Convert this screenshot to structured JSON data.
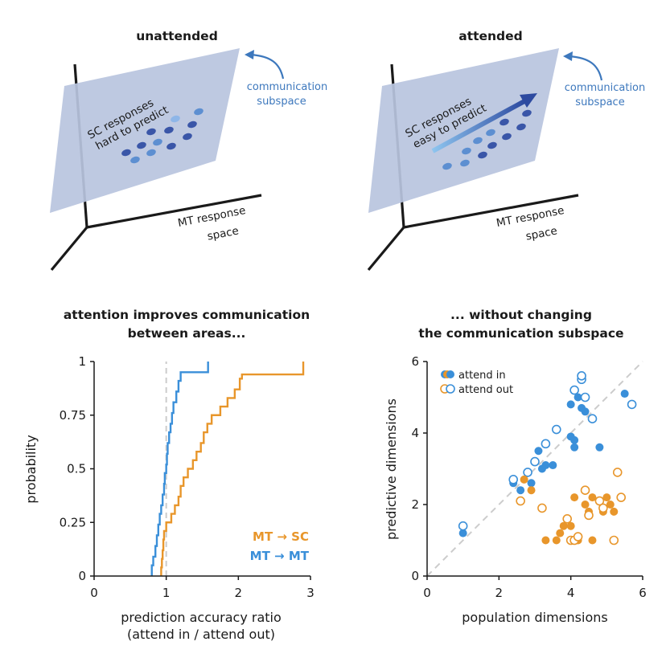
{
  "panel_a": {
    "title": "unattended",
    "plane_label": [
      "SC responses",
      "hard to predict"
    ],
    "subspace_label": [
      "communication",
      "subspace"
    ],
    "space_label": [
      "MT response",
      "space"
    ]
  },
  "panel_b": {
    "title": "attended",
    "plane_label": [
      "SC responses",
      "easy to predict"
    ],
    "subspace_label": [
      "communication",
      "subspace"
    ],
    "space_label": [
      "MT response",
      "space"
    ]
  },
  "colors": {
    "plane": "#b9c4de",
    "dot_dark": "#3a56a8",
    "dot_light": "#5d8fd1",
    "mt_sc": "#e8962b",
    "mt_mt": "#3a8fd9",
    "diag": "#cccccc"
  },
  "chart_data": [
    {
      "type": "line",
      "title": "attention improves communication between areas...",
      "title_lines": [
        "attention improves communication",
        "between areas..."
      ],
      "xlabel": "prediction accuracy ratio",
      "xlabel2": "(attend in / attend out)",
      "ylabel": "probability",
      "xlim": [
        0,
        3
      ],
      "ylim": [
        0,
        1
      ],
      "xticks": [
        "0",
        "1",
        "2",
        "3"
      ],
      "yticks": [
        "0",
        "0.25",
        "0.5",
        "0.75",
        "1"
      ],
      "reference_line_x": 1,
      "legend_placement": "bottom-right",
      "series": [
        {
          "name": "MT → SC",
          "x": [
            0.93,
            0.94,
            0.95,
            0.96,
            0.97,
            1.0,
            1.07,
            1.12,
            1.17,
            1.2,
            1.24,
            1.3,
            1.37,
            1.42,
            1.48,
            1.52,
            1.57,
            1.63,
            1.75,
            1.85,
            1.95,
            2.02,
            2.05,
            2.9
          ],
          "y": [
            0.04,
            0.08,
            0.12,
            0.17,
            0.21,
            0.25,
            0.29,
            0.33,
            0.37,
            0.42,
            0.46,
            0.5,
            0.54,
            0.58,
            0.62,
            0.67,
            0.71,
            0.75,
            0.79,
            0.83,
            0.87,
            0.92,
            0.94,
            1.0
          ]
        },
        {
          "name": "MT → MT",
          "x": [
            0.8,
            0.82,
            0.85,
            0.87,
            0.89,
            0.91,
            0.93,
            0.95,
            0.97,
            0.98,
            1.0,
            1.01,
            1.02,
            1.04,
            1.06,
            1.08,
            1.1,
            1.14,
            1.17,
            1.2,
            1.58
          ],
          "y": [
            0.05,
            0.09,
            0.14,
            0.19,
            0.24,
            0.29,
            0.33,
            0.38,
            0.43,
            0.48,
            0.52,
            0.57,
            0.62,
            0.67,
            0.71,
            0.76,
            0.81,
            0.86,
            0.91,
            0.95,
            1.0
          ]
        }
      ]
    },
    {
      "type": "scatter",
      "title": "... without changing the communication subspace",
      "title_lines": [
        "... without changing",
        "the communication subspace"
      ],
      "xlabel": "population dimensions",
      "ylabel": "predictive dimensions",
      "xlim": [
        0,
        6
      ],
      "ylim": [
        0,
        6
      ],
      "xticks": [
        "0",
        "2",
        "4",
        "6"
      ],
      "yticks": [
        "0",
        "2",
        "4",
        "6"
      ],
      "diagonal": true,
      "legend_placement": "top-left",
      "legend": [
        "attend in",
        "attend out"
      ],
      "series": [
        {
          "name": "MT → MT attend in",
          "color": "mt_mt",
          "filled": true,
          "points": [
            [
              1.0,
              1.2
            ],
            [
              2.4,
              2.6
            ],
            [
              2.6,
              2.4
            ],
            [
              2.9,
              2.6
            ],
            [
              3.1,
              3.5
            ],
            [
              3.2,
              3.0
            ],
            [
              3.3,
              3.1
            ],
            [
              3.5,
              3.1
            ],
            [
              4.0,
              3.9
            ],
            [
              4.1,
              3.8
            ],
            [
              4.1,
              3.6
            ],
            [
              4.0,
              4.8
            ],
            [
              4.2,
              5.0
            ],
            [
              4.3,
              4.7
            ],
            [
              4.4,
              4.6
            ],
            [
              4.8,
              3.6
            ],
            [
              5.5,
              5.1
            ]
          ]
        },
        {
          "name": "MT → MT attend out",
          "color": "mt_mt",
          "filled": false,
          "points": [
            [
              1.0,
              1.4
            ],
            [
              2.4,
              2.7
            ],
            [
              2.8,
              2.9
            ],
            [
              3.0,
              3.2
            ],
            [
              3.3,
              3.7
            ],
            [
              3.6,
              4.1
            ],
            [
              4.1,
              5.2
            ],
            [
              4.3,
              5.5
            ],
            [
              4.3,
              5.6
            ],
            [
              4.4,
              5.0
            ],
            [
              4.6,
              4.4
            ],
            [
              5.7,
              4.8
            ]
          ]
        },
        {
          "name": "MT → SC attend in",
          "color": "mt_sc",
          "filled": true,
          "points": [
            [
              2.7,
              2.7
            ],
            [
              2.9,
              2.4
            ],
            [
              3.3,
              1.0
            ],
            [
              3.6,
              1.0
            ],
            [
              3.7,
              1.2
            ],
            [
              3.8,
              1.4
            ],
            [
              4.0,
              1.4
            ],
            [
              4.1,
              2.2
            ],
            [
              4.2,
              1.0
            ],
            [
              4.4,
              2.0
            ],
            [
              4.5,
              1.8
            ],
            [
              4.6,
              2.2
            ],
            [
              4.6,
              1.0
            ],
            [
              4.9,
              1.8
            ],
            [
              5.0,
              2.2
            ],
            [
              5.1,
              2.0
            ],
            [
              5.2,
              1.8
            ]
          ]
        },
        {
          "name": "MT → SC attend out",
          "color": "mt_sc",
          "filled": false,
          "points": [
            [
              2.6,
              2.1
            ],
            [
              3.2,
              1.9
            ],
            [
              3.9,
              1.6
            ],
            [
              4.0,
              1.0
            ],
            [
              4.1,
              1.0
            ],
            [
              4.2,
              1.1
            ],
            [
              4.4,
              2.4
            ],
            [
              4.5,
              1.7
            ],
            [
              4.8,
              2.1
            ],
            [
              4.9,
              1.9
            ],
            [
              5.2,
              1.0
            ],
            [
              5.4,
              2.2
            ],
            [
              5.3,
              2.9
            ]
          ]
        }
      ]
    }
  ]
}
